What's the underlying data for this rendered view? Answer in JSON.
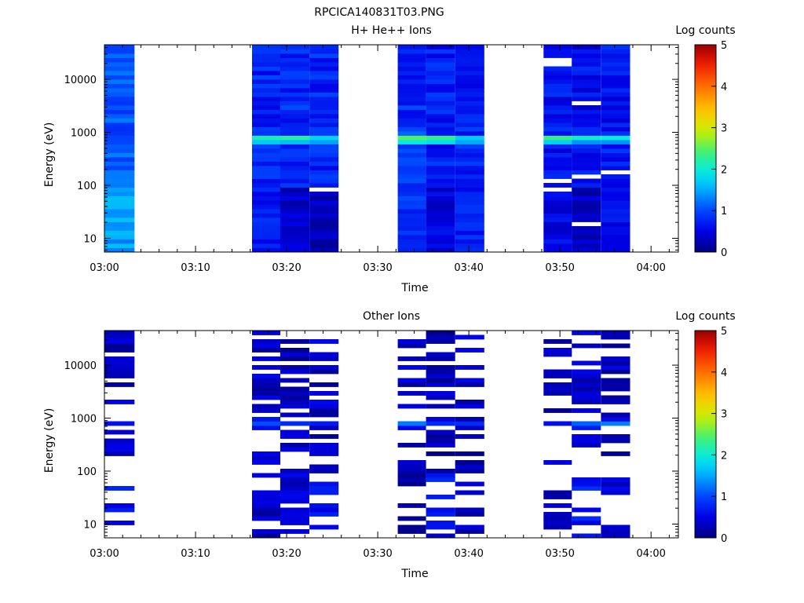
{
  "figure": {
    "title": "RPCICA140831T03.PNG"
  },
  "chart_data": [
    {
      "type": "heatmap",
      "title": "H+ He++ Ions",
      "xlabel": "Time",
      "ylabel": "Energy (eV)",
      "colorbar_label": "Log counts",
      "x_range_minutes": [
        0,
        63
      ],
      "x_ticks": [
        "03:00",
        "03:10",
        "03:20",
        "03:30",
        "03:40",
        "03:50",
        "04:00"
      ],
      "y_scale": "log",
      "y_range": [
        5.5,
        45000
      ],
      "y_ticks": [
        "10",
        "100",
        "1000",
        "10000"
      ],
      "color_range": [
        0,
        5
      ],
      "colorbar_ticks": [
        "0",
        "1",
        "2",
        "3",
        "4",
        "5"
      ],
      "colormap": "rainbow (dark blue - cyan - green - yellow - red)",
      "peak_energy_ev": 750,
      "columns": [
        {
          "start_min": 0.0,
          "end_min": 3.3,
          "base": 1.05,
          "peak": 1.05,
          "low": 1.45,
          "gap_prob": 0.0
        },
        {
          "start_min": 16.2,
          "end_min": 19.3,
          "base": 0.75,
          "peak": 2.3,
          "low": 0.7,
          "gap_prob": 0.0
        },
        {
          "start_min": 19.3,
          "end_min": 22.5,
          "base": 0.8,
          "peak": 2.2,
          "low": 0.35,
          "gap_prob": 0.0
        },
        {
          "start_min": 22.5,
          "end_min": 25.7,
          "base": 0.75,
          "peak": 2.1,
          "low": 0.3,
          "gap_prob": 0.04
        },
        {
          "start_min": 32.2,
          "end_min": 35.3,
          "base": 0.8,
          "peak": 2.6,
          "low": 0.85,
          "gap_prob": 0.0
        },
        {
          "start_min": 35.3,
          "end_min": 38.5,
          "base": 0.7,
          "peak": 2.4,
          "low": 0.45,
          "gap_prob": 0.0
        },
        {
          "start_min": 38.5,
          "end_min": 41.7,
          "base": 0.7,
          "peak": 1.8,
          "low": 0.7,
          "gap_prob": 0.0
        },
        {
          "start_min": 48.2,
          "end_min": 51.3,
          "base": 0.65,
          "peak": 2.4,
          "low": 0.5,
          "gap_prob": 0.04
        },
        {
          "start_min": 51.3,
          "end_min": 54.5,
          "base": 0.6,
          "peak": 2.3,
          "low": 0.3,
          "gap_prob": 0.05
        },
        {
          "start_min": 54.5,
          "end_min": 57.7,
          "base": 0.65,
          "peak": 2.2,
          "low": 0.6,
          "gap_prob": 0.05
        }
      ]
    },
    {
      "type": "heatmap",
      "title": "Other Ions",
      "xlabel": "Time",
      "ylabel": "Energy (eV)",
      "colorbar_label": "Log counts",
      "x_range_minutes": [
        0,
        63
      ],
      "x_ticks": [
        "03:00",
        "03:10",
        "03:20",
        "03:30",
        "03:40",
        "03:50",
        "04:00"
      ],
      "y_scale": "log",
      "y_range": [
        5.5,
        45000
      ],
      "y_ticks": [
        "10",
        "100",
        "1000",
        "10000"
      ],
      "color_range": [
        0,
        5
      ],
      "colorbar_ticks": [
        "0",
        "1",
        "2",
        "3",
        "4",
        "5"
      ],
      "colormap": "rainbow (dark blue - cyan - green - yellow - red)",
      "peak_energy_ev": 780,
      "columns": [
        {
          "start_min": 0.0,
          "end_min": 3.3,
          "base": 0.3,
          "peak": 0.5,
          "low": 0.6,
          "gap_prob": 0.5
        },
        {
          "start_min": 16.2,
          "end_min": 19.3,
          "base": 0.35,
          "peak": 1.1,
          "low": 0.3,
          "gap_prob": 0.45
        },
        {
          "start_min": 19.3,
          "end_min": 22.5,
          "base": 0.25,
          "peak": 0.9,
          "low": 0.4,
          "gap_prob": 0.45
        },
        {
          "start_min": 22.5,
          "end_min": 25.7,
          "base": 0.3,
          "peak": 0.9,
          "low": 0.55,
          "gap_prob": 0.45
        },
        {
          "start_min": 32.2,
          "end_min": 35.3,
          "base": 0.3,
          "peak": 1.4,
          "low": 0.15,
          "gap_prob": 0.5
        },
        {
          "start_min": 35.3,
          "end_min": 38.5,
          "base": 0.25,
          "peak": 1.0,
          "low": 0.6,
          "gap_prob": 0.5
        },
        {
          "start_min": 38.5,
          "end_min": 41.7,
          "base": 0.3,
          "peak": 0.9,
          "low": 0.3,
          "gap_prob": 0.5
        },
        {
          "start_min": 48.2,
          "end_min": 51.3,
          "base": 0.25,
          "peak": 0.5,
          "low": 0.3,
          "gap_prob": 0.6
        },
        {
          "start_min": 51.3,
          "end_min": 54.5,
          "base": 0.3,
          "peak": 1.1,
          "low": 0.65,
          "gap_prob": 0.6
        },
        {
          "start_min": 54.5,
          "end_min": 57.7,
          "base": 0.3,
          "peak": 1.2,
          "low": 0.45,
          "gap_prob": 0.55
        }
      ]
    }
  ]
}
